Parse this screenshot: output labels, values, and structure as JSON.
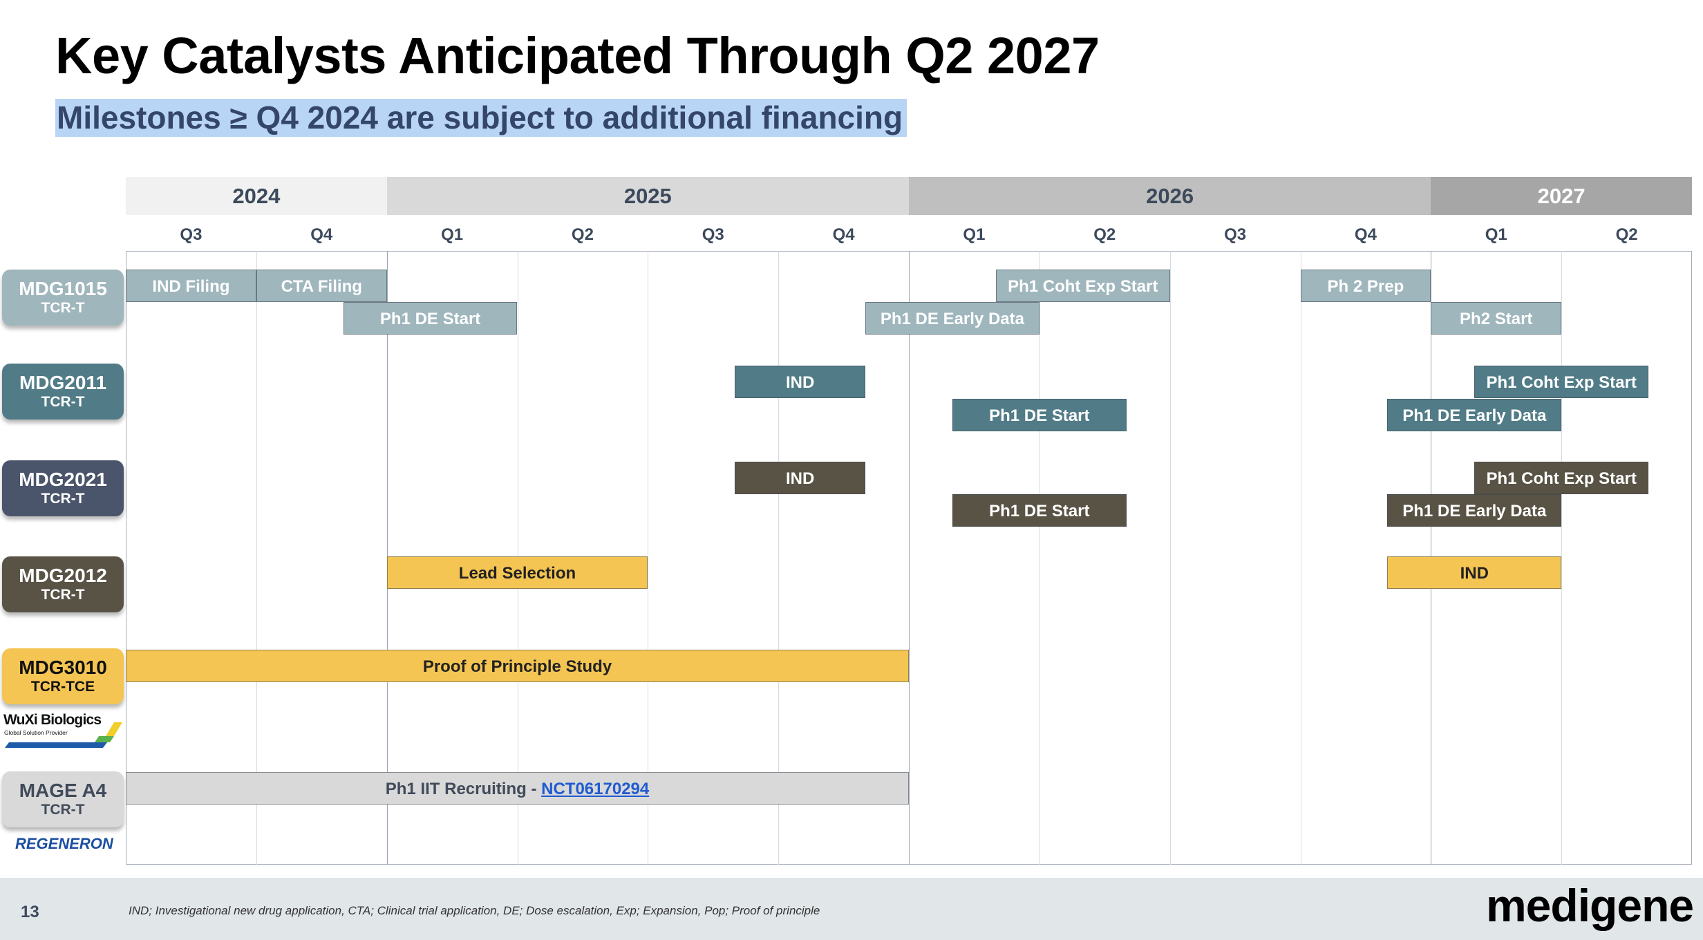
{
  "title": "Key Catalysts Anticipated Through Q2 2027",
  "subtitle": "Milestones ≥ Q4 2024 are subject to additional financing",
  "chart_data": {
    "type": "bar",
    "orientation": "horizontal-timeline",
    "years": [
      {
        "label": "2024",
        "quarters": [
          "Q3",
          "Q4"
        ],
        "color": "#f1f1f1"
      },
      {
        "label": "2025",
        "quarters": [
          "Q1",
          "Q2",
          "Q3",
          "Q4"
        ],
        "color": "#d9d9d9"
      },
      {
        "label": "2026",
        "quarters": [
          "Q1",
          "Q2",
          "Q3",
          "Q4"
        ],
        "color": "#bfbfbf"
      },
      {
        "label": "2027",
        "quarters": [
          "Q1",
          "Q2"
        ],
        "color": "#a6a6a6"
      }
    ],
    "xlim": [
      "2024-07",
      "2027-06"
    ],
    "programs": [
      {
        "name": "MDG1015",
        "type": "TCR-T",
        "label_color": "#9fb6bd",
        "bar_color": "#9fb6bd",
        "bar_text_color": "#ffffff",
        "milestones": [
          {
            "label": "IND Filing",
            "start": "2024-07",
            "end": "2024-09"
          },
          {
            "label": "CTA Filing",
            "start": "2024-10",
            "end": "2024-12"
          },
          {
            "label": "Ph1 DE Start",
            "start": "2024-12",
            "end": "2025-03"
          },
          {
            "label": "Ph1 Coht Exp Start",
            "start": "2026-03",
            "end": "2026-06"
          },
          {
            "label": "Ph1 DE Early Data",
            "start": "2025-12",
            "end": "2026-03"
          },
          {
            "label": "Ph 2 Prep",
            "start": "2026-10",
            "end": "2026-12"
          },
          {
            "label": "Ph2 Start",
            "start": "2027-01",
            "end": "2027-03"
          }
        ]
      },
      {
        "name": "MDG2011",
        "type": "TCR-T",
        "label_color": "#517c87",
        "bar_color": "#517c87",
        "bar_text_color": "#ffffff",
        "milestones": [
          {
            "label": "IND",
            "start": "2025-09",
            "end": "2025-11"
          },
          {
            "label": "Ph1 DE Start",
            "start": "2026-02",
            "end": "2026-05"
          },
          {
            "label": "Ph1 Coht Exp Start",
            "start": "2027-02",
            "end": "2027-05"
          },
          {
            "label": "Ph1 DE Early Data",
            "start": "2026-12",
            "end": "2027-03"
          }
        ]
      },
      {
        "name": "MDG2021",
        "type": "TCR-T",
        "label_color": "#4a546a",
        "bar_color": "#595345",
        "bar_text_color": "#ffffff",
        "milestones": [
          {
            "label": "IND",
            "start": "2025-09",
            "end": "2025-11"
          },
          {
            "label": "Ph1 DE Start",
            "start": "2026-02",
            "end": "2026-05"
          },
          {
            "label": "Ph1 Coht Exp Start",
            "start": "2027-02",
            "end": "2027-05"
          },
          {
            "label": "Ph1 DE Early Data",
            "start": "2026-12",
            "end": "2027-03"
          }
        ]
      },
      {
        "name": "MDG2012",
        "type": "TCR-T",
        "label_color": "#595345",
        "bar_color": "#f5c553",
        "bar_text_color": "#222222",
        "milestones": [
          {
            "label": "Lead Selection",
            "start": "2025-01",
            "end": "2025-06"
          },
          {
            "label": "IND",
            "start": "2026-12",
            "end": "2027-03"
          }
        ]
      },
      {
        "name": "MDG3010",
        "type": "TCR-TCE",
        "label_color": "#f5c553",
        "label_text_color": "#111111",
        "bar_color": "#f5c553",
        "bar_text_color": "#222222",
        "partner": {
          "name": "WuXi Biologics",
          "tagline": "Global Solution Provider"
        },
        "milestones": [
          {
            "label": "Proof of Principle Study",
            "start": "2024-07",
            "end": "2025-12"
          }
        ]
      },
      {
        "name": "MAGE A4",
        "type": "TCR-T",
        "label_color": "#d9d9d9",
        "label_text_color": "#404a5a",
        "bar_color": "#d9d9d9",
        "bar_text_color": "#404a5a",
        "partner": {
          "name": "REGENERON"
        },
        "milestones": [
          {
            "label": "Ph1 IIT Recruiting - ",
            "link": "NCT06170294",
            "start": "2024-07",
            "end": "2025-12"
          }
        ]
      }
    ]
  },
  "footer": {
    "page_number": "13",
    "footnote": "IND; Investigational new drug application, CTA; Clinical trial application, DE; Dose escalation, Exp; Expansion, Pop; Proof of principle",
    "logo": "medigene"
  }
}
